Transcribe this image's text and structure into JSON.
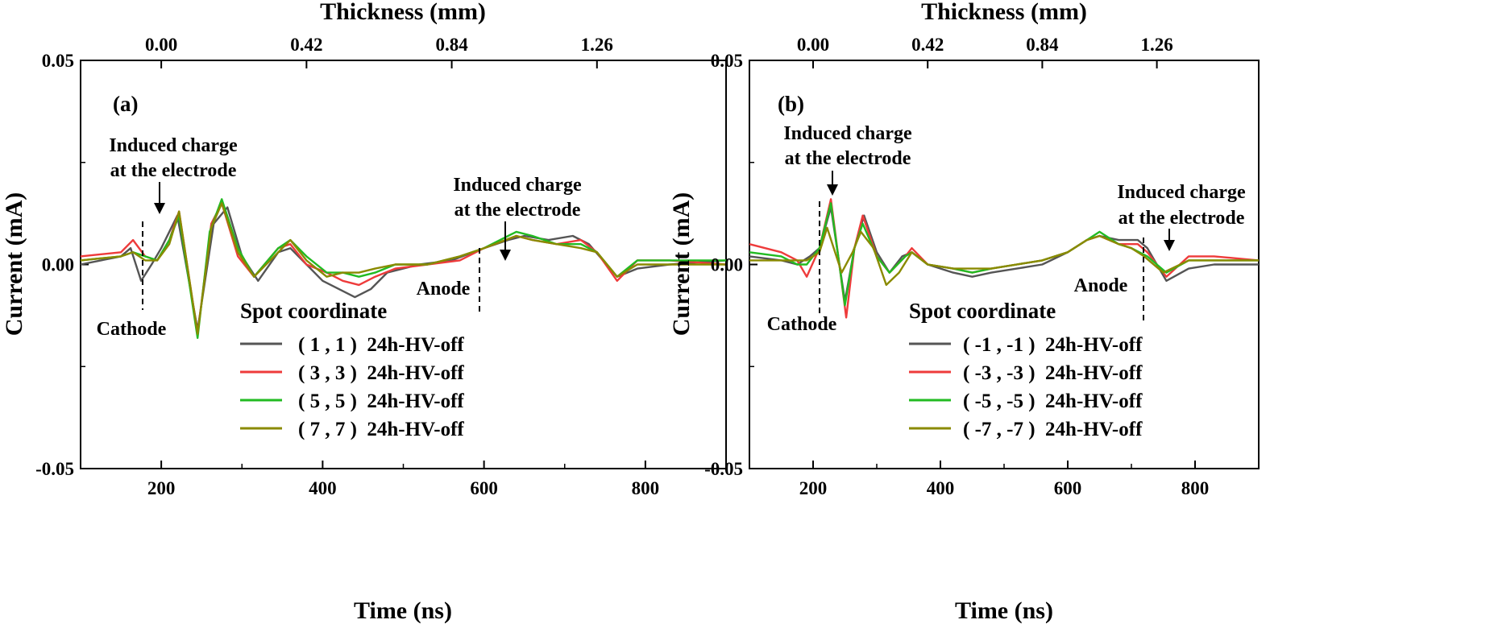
{
  "chart_data": [
    {
      "type": "line",
      "panel_label": "(a)",
      "xlabel": "Time (ns)",
      "ylabel": "Current (mA)",
      "top_xlabel": "Thickness (mm)",
      "xlim": [
        100,
        900
      ],
      "ylim": [
        -0.05,
        0.05
      ],
      "x_ticks": [
        "200",
        "400",
        "600",
        "800"
      ],
      "y_ticks": [
        "-0.05",
        "0.00",
        "0.05"
      ],
      "top_ticks": [
        {
          "label": "0.00",
          "at_time": 200
        },
        {
          "label": "0.42",
          "at_time": 380
        },
        {
          "label": "0.84",
          "at_time": 560
        },
        {
          "label": "1.26",
          "at_time": 740
        }
      ],
      "legend_title": "Spot coordinate",
      "series": [
        {
          "name": "( 1 , 1 )  24h-HV-off",
          "color": "#555555",
          "points": [
            [
              100,
              0.0
            ],
            [
              150,
              0.002
            ],
            [
              162,
              0.004
            ],
            [
              175,
              -0.004
            ],
            [
              188,
              0.0
            ],
            [
              200,
              0.004
            ],
            [
              220,
              0.012
            ],
            [
              245,
              -0.016
            ],
            [
              265,
              0.01
            ],
            [
              282,
              0.014
            ],
            [
              300,
              0.002
            ],
            [
              320,
              -0.004
            ],
            [
              345,
              0.003
            ],
            [
              360,
              0.004
            ],
            [
              380,
              0.0
            ],
            [
              400,
              -0.004
            ],
            [
              420,
              -0.006
            ],
            [
              440,
              -0.008
            ],
            [
              460,
              -0.006
            ],
            [
              480,
              -0.002
            ],
            [
              520,
              0.0
            ],
            [
              560,
              0.001
            ],
            [
              600,
              0.004
            ],
            [
              630,
              0.006
            ],
            [
              650,
              0.007
            ],
            [
              680,
              0.006
            ],
            [
              710,
              0.007
            ],
            [
              730,
              0.005
            ],
            [
              765,
              -0.003
            ],
            [
              790,
              -0.001
            ],
            [
              830,
              0.0
            ],
            [
              900,
              0.001
            ]
          ]
        },
        {
          "name": "( 3 , 3 )  24h-HV-off",
          "color": "#ee3b3b",
          "points": [
            [
              100,
              0.002
            ],
            [
              150,
              0.003
            ],
            [
              165,
              0.006
            ],
            [
              180,
              0.002
            ],
            [
              195,
              0.001
            ],
            [
              210,
              0.006
            ],
            [
              222,
              0.013
            ],
            [
              245,
              -0.017
            ],
            [
              262,
              0.01
            ],
            [
              275,
              0.015
            ],
            [
              295,
              0.002
            ],
            [
              315,
              -0.003
            ],
            [
              345,
              0.004
            ],
            [
              360,
              0.005
            ],
            [
              380,
              0.0
            ],
            [
              405,
              -0.002
            ],
            [
              425,
              -0.004
            ],
            [
              445,
              -0.005
            ],
            [
              465,
              -0.003
            ],
            [
              490,
              -0.001
            ],
            [
              530,
              0.0
            ],
            [
              570,
              0.001
            ],
            [
              600,
              0.004
            ],
            [
              640,
              0.007
            ],
            [
              660,
              0.006
            ],
            [
              690,
              0.005
            ],
            [
              720,
              0.006
            ],
            [
              740,
              0.003
            ],
            [
              765,
              -0.004
            ],
            [
              790,
              0.001
            ],
            [
              830,
              0.001
            ],
            [
              900,
              0.0
            ]
          ]
        },
        {
          "name": "( 5 , 5 )  24h-HV-off",
          "color": "#22bb22",
          "points": [
            [
              100,
              0.001
            ],
            [
              150,
              0.002
            ],
            [
              165,
              0.003
            ],
            [
              180,
              0.002
            ],
            [
              195,
              0.001
            ],
            [
              210,
              0.006
            ],
            [
              222,
              0.012
            ],
            [
              245,
              -0.018
            ],
            [
              260,
              0.008
            ],
            [
              275,
              0.016
            ],
            [
              295,
              0.004
            ],
            [
              315,
              -0.003
            ],
            [
              345,
              0.004
            ],
            [
              360,
              0.006
            ],
            [
              380,
              0.002
            ],
            [
              405,
              -0.002
            ],
            [
              425,
              -0.002
            ],
            [
              445,
              -0.003
            ],
            [
              465,
              -0.002
            ],
            [
              490,
              0.0
            ],
            [
              530,
              0.0
            ],
            [
              570,
              0.002
            ],
            [
              600,
              0.004
            ],
            [
              640,
              0.008
            ],
            [
              660,
              0.007
            ],
            [
              690,
              0.005
            ],
            [
              720,
              0.005
            ],
            [
              740,
              0.003
            ],
            [
              765,
              -0.003
            ],
            [
              790,
              0.001
            ],
            [
              830,
              0.001
            ],
            [
              900,
              0.001
            ]
          ]
        },
        {
          "name": "( 7 , 7 )  24h-HV-off",
          "color": "#8a8a00",
          "points": [
            [
              100,
              0.001
            ],
            [
              150,
              0.002
            ],
            [
              165,
              0.003
            ],
            [
              180,
              0.001
            ],
            [
              195,
              0.001
            ],
            [
              210,
              0.005
            ],
            [
              222,
              0.013
            ],
            [
              245,
              -0.017
            ],
            [
              262,
              0.009
            ],
            [
              275,
              0.015
            ],
            [
              295,
              0.003
            ],
            [
              315,
              -0.003
            ],
            [
              345,
              0.003
            ],
            [
              360,
              0.006
            ],
            [
              380,
              0.001
            ],
            [
              405,
              -0.003
            ],
            [
              425,
              -0.002
            ],
            [
              445,
              -0.002
            ],
            [
              465,
              -0.001
            ],
            [
              490,
              0.0
            ],
            [
              530,
              0.0
            ],
            [
              570,
              0.002
            ],
            [
              600,
              0.004
            ],
            [
              640,
              0.007
            ],
            [
              660,
              0.006
            ],
            [
              690,
              0.005
            ],
            [
              720,
              0.004
            ],
            [
              740,
              0.003
            ],
            [
              765,
              -0.003
            ],
            [
              790,
              0.0
            ],
            [
              830,
              0.0
            ],
            [
              900,
              0.0
            ]
          ]
        }
      ],
      "annotations": {
        "left_line1": "Induced charge",
        "left_line2": "at the electrode",
        "right_line1": "Induced charge",
        "right_line2": "at the electrode",
        "cathode": "Cathode",
        "anode": "Anode"
      }
    },
    {
      "type": "line",
      "panel_label": "(b)",
      "xlabel": "Time (ns)",
      "ylabel": "Current (mA)",
      "top_xlabel": "Thickness (mm)",
      "xlim": [
        100,
        900
      ],
      "ylim": [
        -0.05,
        0.05
      ],
      "x_ticks": [
        "200",
        "400",
        "600",
        "800"
      ],
      "y_ticks": [
        "-0.05",
        "0.00",
        "0.05"
      ],
      "top_ticks": [
        {
          "label": "0.00",
          "at_time": 200
        },
        {
          "label": "0.42",
          "at_time": 380
        },
        {
          "label": "0.84",
          "at_time": 560
        },
        {
          "label": "1.26",
          "at_time": 740
        }
      ],
      "legend_title": "Spot coordinate",
      "series": [
        {
          "name": "( -1 , -1 )  24h-HV-off",
          "color": "#555555",
          "points": [
            [
              100,
              0.002
            ],
            [
              150,
              0.001
            ],
            [
              175,
              0.0
            ],
            [
              195,
              0.002
            ],
            [
              210,
              0.004
            ],
            [
              228,
              0.014
            ],
            [
              250,
              -0.009
            ],
            [
              265,
              0.004
            ],
            [
              280,
              0.012
            ],
            [
              300,
              0.003
            ],
            [
              320,
              -0.002
            ],
            [
              340,
              0.002
            ],
            [
              355,
              0.003
            ],
            [
              380,
              0.0
            ],
            [
              420,
              -0.002
            ],
            [
              450,
              -0.003
            ],
            [
              480,
              -0.002
            ],
            [
              520,
              -0.001
            ],
            [
              560,
              0.0
            ],
            [
              600,
              0.003
            ],
            [
              630,
              0.006
            ],
            [
              650,
              0.007
            ],
            [
              680,
              0.006
            ],
            [
              710,
              0.006
            ],
            [
              725,
              0.004
            ],
            [
              755,
              -0.004
            ],
            [
              790,
              -0.001
            ],
            [
              830,
              0.0
            ],
            [
              900,
              0.0
            ]
          ]
        },
        {
          "name": "( -3 , -3 )  24h-HV-off",
          "color": "#ee3b3b",
          "points": [
            [
              100,
              0.005
            ],
            [
              150,
              0.003
            ],
            [
              175,
              0.001
            ],
            [
              190,
              -0.003
            ],
            [
              210,
              0.004
            ],
            [
              228,
              0.016
            ],
            [
              252,
              -0.013
            ],
            [
              265,
              0.004
            ],
            [
              278,
              0.012
            ],
            [
              300,
              0.002
            ],
            [
              320,
              -0.002
            ],
            [
              345,
              0.002
            ],
            [
              355,
              0.004
            ],
            [
              380,
              0.0
            ],
            [
              420,
              -0.001
            ],
            [
              450,
              -0.002
            ],
            [
              480,
              -0.001
            ],
            [
              520,
              0.0
            ],
            [
              560,
              0.001
            ],
            [
              600,
              0.003
            ],
            [
              630,
              0.006
            ],
            [
              650,
              0.007
            ],
            [
              680,
              0.005
            ],
            [
              710,
              0.005
            ],
            [
              725,
              0.003
            ],
            [
              755,
              -0.003
            ],
            [
              790,
              0.002
            ],
            [
              830,
              0.002
            ],
            [
              900,
              0.001
            ]
          ]
        },
        {
          "name": "( -5 , -5 )  24h-HV-off",
          "color": "#22bb22",
          "points": [
            [
              100,
              0.003
            ],
            [
              150,
              0.002
            ],
            [
              175,
              0.0
            ],
            [
              190,
              0.0
            ],
            [
              210,
              0.004
            ],
            [
              228,
              0.015
            ],
            [
              250,
              -0.01
            ],
            [
              265,
              0.004
            ],
            [
              278,
              0.01
            ],
            [
              300,
              0.002
            ],
            [
              320,
              -0.002
            ],
            [
              345,
              0.002
            ],
            [
              355,
              0.003
            ],
            [
              380,
              0.0
            ],
            [
              420,
              -0.001
            ],
            [
              450,
              -0.002
            ],
            [
              480,
              -0.001
            ],
            [
              520,
              0.0
            ],
            [
              560,
              0.001
            ],
            [
              600,
              0.003
            ],
            [
              630,
              0.006
            ],
            [
              650,
              0.008
            ],
            [
              680,
              0.005
            ],
            [
              700,
              0.004
            ],
            [
              725,
              0.002
            ],
            [
              755,
              -0.002
            ],
            [
              790,
              0.001
            ],
            [
              830,
              0.001
            ],
            [
              900,
              0.001
            ]
          ]
        },
        {
          "name": "( -7 , -7 )  24h-HV-off",
          "color": "#8a8a00",
          "points": [
            [
              100,
              0.001
            ],
            [
              150,
              0.001
            ],
            [
              175,
              0.001
            ],
            [
              190,
              0.001
            ],
            [
              210,
              0.003
            ],
            [
              222,
              0.009
            ],
            [
              245,
              -0.002
            ],
            [
              262,
              0.003
            ],
            [
              275,
              0.008
            ],
            [
              295,
              0.004
            ],
            [
              315,
              -0.005
            ],
            [
              335,
              -0.002
            ],
            [
              355,
              0.003
            ],
            [
              380,
              0.0
            ],
            [
              420,
              -0.001
            ],
            [
              450,
              -0.001
            ],
            [
              480,
              -0.001
            ],
            [
              520,
              0.0
            ],
            [
              560,
              0.001
            ],
            [
              600,
              0.003
            ],
            [
              630,
              0.006
            ],
            [
              650,
              0.007
            ],
            [
              680,
              0.005
            ],
            [
              700,
              0.004
            ],
            [
              720,
              0.002
            ],
            [
              750,
              -0.002
            ],
            [
              790,
              0.001
            ],
            [
              830,
              0.001
            ],
            [
              900,
              0.001
            ]
          ]
        }
      ],
      "annotations": {
        "left_line1": "Induced charge",
        "left_line2": "at the electrode",
        "right_line1": "Induced charge",
        "right_line2": "at the electrode",
        "cathode": "Cathode",
        "anode": "Anode"
      }
    }
  ]
}
